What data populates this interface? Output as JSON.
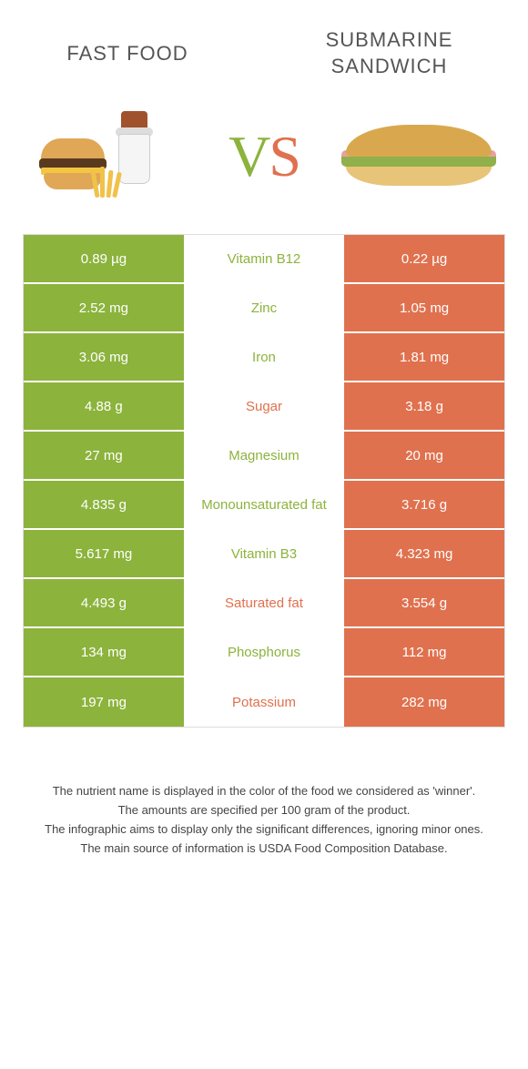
{
  "header": {
    "left_title": "FAST FOOD",
    "right_title": "SUBMARINE SANDWICH"
  },
  "vs": {
    "v": "V",
    "s": "S"
  },
  "colors": {
    "left_col": "#8cb33c",
    "right_col": "#e0714e",
    "mid_bg": "#ffffff",
    "nutrient_left_winner": "#8cb33c",
    "nutrient_right_winner": "#e0714e"
  },
  "rows": [
    {
      "left": "0.89 µg",
      "name": "Vitamin B12",
      "right": "0.22 µg",
      "winner": "left"
    },
    {
      "left": "2.52 mg",
      "name": "Zinc",
      "right": "1.05 mg",
      "winner": "left"
    },
    {
      "left": "3.06 mg",
      "name": "Iron",
      "right": "1.81 mg",
      "winner": "left"
    },
    {
      "left": "4.88 g",
      "name": "Sugar",
      "right": "3.18 g",
      "winner": "right"
    },
    {
      "left": "27 mg",
      "name": "Magnesium",
      "right": "20 mg",
      "winner": "left"
    },
    {
      "left": "4.835 g",
      "name": "Monounsaturated fat",
      "right": "3.716 g",
      "winner": "left"
    },
    {
      "left": "5.617 mg",
      "name": "Vitamin B3",
      "right": "4.323 mg",
      "winner": "left"
    },
    {
      "left": "4.493 g",
      "name": "Saturated fat",
      "right": "3.554 g",
      "winner": "right"
    },
    {
      "left": "134 mg",
      "name": "Phosphorus",
      "right": "112 mg",
      "winner": "left"
    },
    {
      "left": "197 mg",
      "name": "Potassium",
      "right": "282 mg",
      "winner": "right"
    }
  ],
  "footer": {
    "line1": "The nutrient name is displayed in the color of the food we considered as 'winner'.",
    "line2": "The amounts are specified per 100 gram of the product.",
    "line3": "The infographic aims to display only the significant differences, ignoring minor ones.",
    "line4": "The main source of information is USDA Food Composition Database."
  }
}
